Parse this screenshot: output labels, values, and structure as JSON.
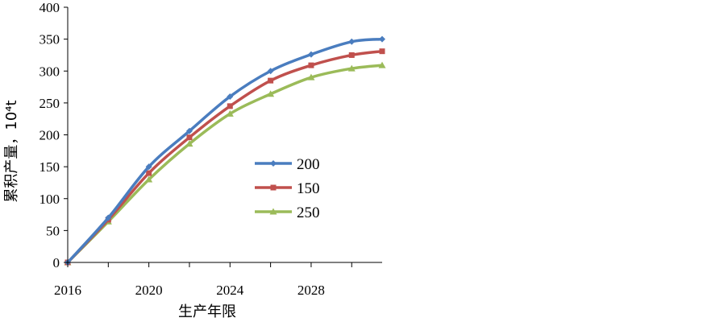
{
  "chart_data": {
    "type": "line",
    "xlabel": "生产年限",
    "ylabel": "累积产量，10⁴t",
    "xlim": [
      2016,
      2031.5
    ],
    "ylim": [
      0,
      400
    ],
    "x_ticks": [
      "2016",
      "2020",
      "2024",
      "2028"
    ],
    "y_ticks": [
      "0",
      "50",
      "100",
      "150",
      "200",
      "250",
      "300",
      "350",
      "400"
    ],
    "grid": false,
    "legend_position": "center-right",
    "x": [
      2016,
      2018,
      2020,
      2022,
      2024,
      2026,
      2028,
      2030,
      2031.5
    ],
    "series": [
      {
        "name": "200",
        "color": "#4a7dbf",
        "marker": "diamond",
        "values": [
          0,
          70,
          150,
          206,
          260,
          300,
          326,
          346,
          350
        ]
      },
      {
        "name": "150",
        "color": "#c0504d",
        "marker": "square",
        "values": [
          0,
          67,
          140,
          196,
          245,
          285,
          309,
          325,
          331
        ]
      },
      {
        "name": "250",
        "color": "#9bbb59",
        "marker": "triangle",
        "values": [
          0,
          64,
          130,
          186,
          233,
          264,
          290,
          304,
          309
        ]
      }
    ]
  }
}
